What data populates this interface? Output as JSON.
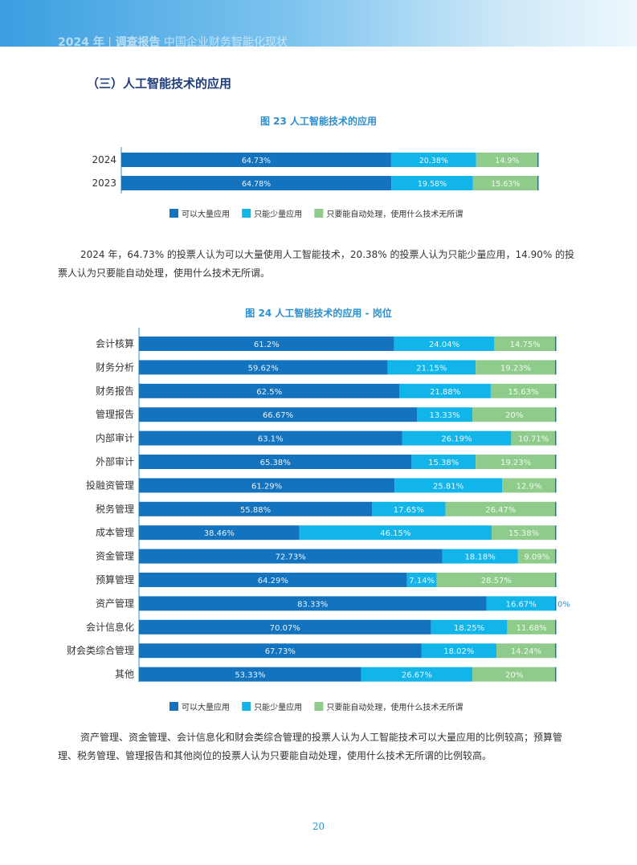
{
  "header": {
    "year": "2024 年",
    "report": "调查报告",
    "subtitle": "中国企业财务智能化现状"
  },
  "section_title": "（三）人工智能技术的应用",
  "colors": {
    "series1": "#1473be",
    "series2": "#12b5ea",
    "series3": "#8fcc8c"
  },
  "chart_data": [
    {
      "type": "bar",
      "orientation": "horizontal",
      "stacked": true,
      "title": "图 23 人工智能技术的应用",
      "categories": [
        "2024",
        "2023"
      ],
      "series": [
        {
          "name": "可以大量应用",
          "values": [
            64.73,
            64.78
          ],
          "labels": [
            "64.73%",
            "64.78%"
          ]
        },
        {
          "name": "只能少量应用",
          "values": [
            20.38,
            19.58
          ],
          "labels": [
            "20.38%",
            "19.58%"
          ]
        },
        {
          "name": "只要能自动处理，使用什么技术无所谓",
          "values": [
            14.9,
            15.63
          ],
          "labels": [
            "14.9%",
            "15.63%"
          ]
        }
      ],
      "legend": "bottom",
      "xlim": [
        0,
        100
      ],
      "grid": false
    },
    {
      "type": "bar",
      "orientation": "horizontal",
      "stacked": true,
      "title": "图 24 人工智能技术的应用 - 岗位",
      "categories": [
        "会计核算",
        "财务分析",
        "财务报告",
        "管理报告",
        "内部审计",
        "外部审计",
        "投融资管理",
        "税务管理",
        "成本管理",
        "资金管理",
        "预算管理",
        "资产管理",
        "会计信息化",
        "财会类综合管理",
        "其他"
      ],
      "series": [
        {
          "name": "可以大量应用",
          "values": [
            61.2,
            59.62,
            62.5,
            66.67,
            63.1,
            65.38,
            61.29,
            55.88,
            38.46,
            72.73,
            64.29,
            83.33,
            70.07,
            67.73,
            53.33
          ],
          "labels": [
            "61.2%",
            "59.62%",
            "62.5%",
            "66.67%",
            "63.1%",
            "65.38%",
            "61.29%",
            "55.88%",
            "38.46%",
            "72.73%",
            "64.29%",
            "83.33%",
            "70.07%",
            "67.73%",
            "53.33%"
          ]
        },
        {
          "name": "只能少量应用",
          "values": [
            24.04,
            21.15,
            21.88,
            13.33,
            26.19,
            15.38,
            25.81,
            17.65,
            46.15,
            18.18,
            7.14,
            16.67,
            18.25,
            18.02,
            26.67
          ],
          "labels": [
            "24.04%",
            "21.15%",
            "21.88%",
            "13.33%",
            "26.19%",
            "15.38%",
            "25.81%",
            "17.65%",
            "46.15%",
            "18.18%",
            "7.14%",
            "16.67%",
            "18.25%",
            "18.02%",
            "26.67%"
          ]
        },
        {
          "name": "只要能自动处理，使用什么技术无所谓",
          "values": [
            14.75,
            19.23,
            15.63,
            20,
            10.71,
            19.23,
            12.9,
            26.47,
            15.38,
            9.09,
            28.57,
            0,
            11.68,
            14.24,
            20
          ],
          "labels": [
            "14.75%",
            "19.23%",
            "15.63%",
            "20%",
            "10.71%",
            "19.23%",
            "12.9%",
            "26.47%",
            "15.38%",
            "9.09%",
            "28.57%",
            "0%",
            "11.68%",
            "14.24%",
            "20%"
          ]
        }
      ],
      "legend": "bottom",
      "xlim": [
        0,
        100
      ],
      "grid": false
    }
  ],
  "paragraphs": [
    "2024 年，64.73% 的投票人认为可以大量使用人工智能技术，20.38% 的投票人认为只能少量应用，14.90% 的投票人认为只要能自动处理，使用什么技术无所谓。",
    "资产管理、资金管理、会计信息化和财会类综合管理的投票人认为人工智能技术可以大量应用的比例较高；预算管理、税务管理、管理报告和其他岗位的投票人认为只要能自动处理，使用什么技术无所谓的比例较高。"
  ],
  "page_number": "20"
}
